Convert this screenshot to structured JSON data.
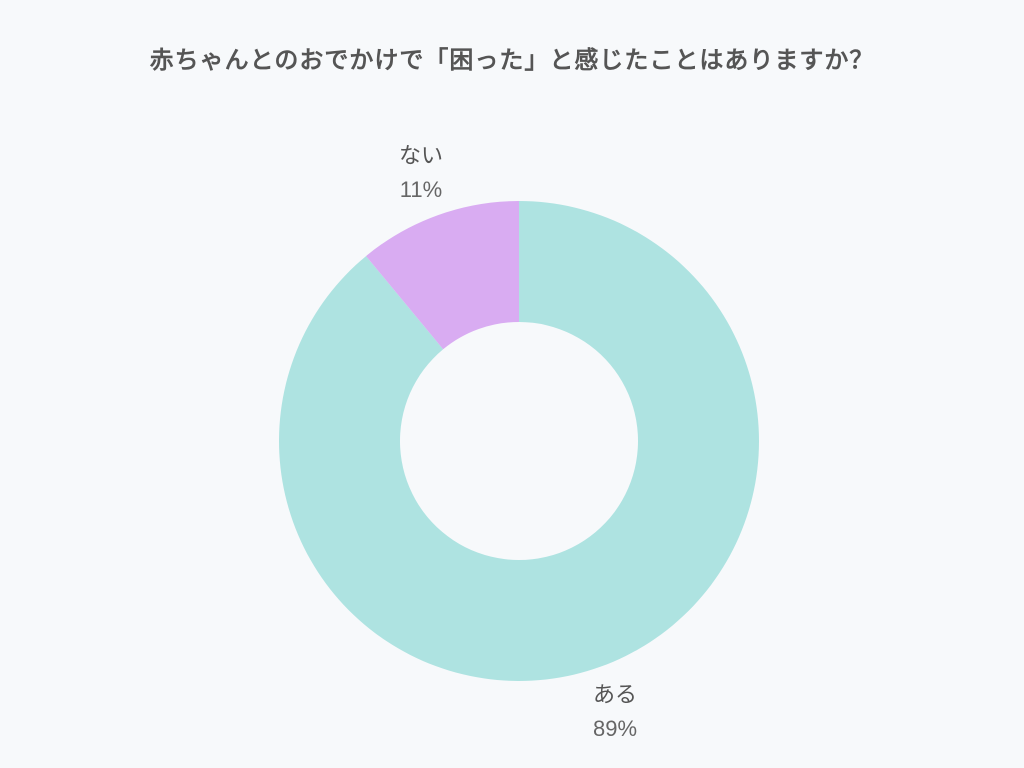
{
  "chart_data": {
    "type": "pie",
    "title": "赤ちゃんとのおでかけで「困った」と感じたことはありますか？",
    "donut": true,
    "slices": [
      {
        "label": "ある",
        "value": 89,
        "value_label": "89%",
        "color": "#aee3e1"
      },
      {
        "label": "ない",
        "value": 11,
        "value_label": "11%",
        "color": "#d9acf2"
      }
    ]
  }
}
